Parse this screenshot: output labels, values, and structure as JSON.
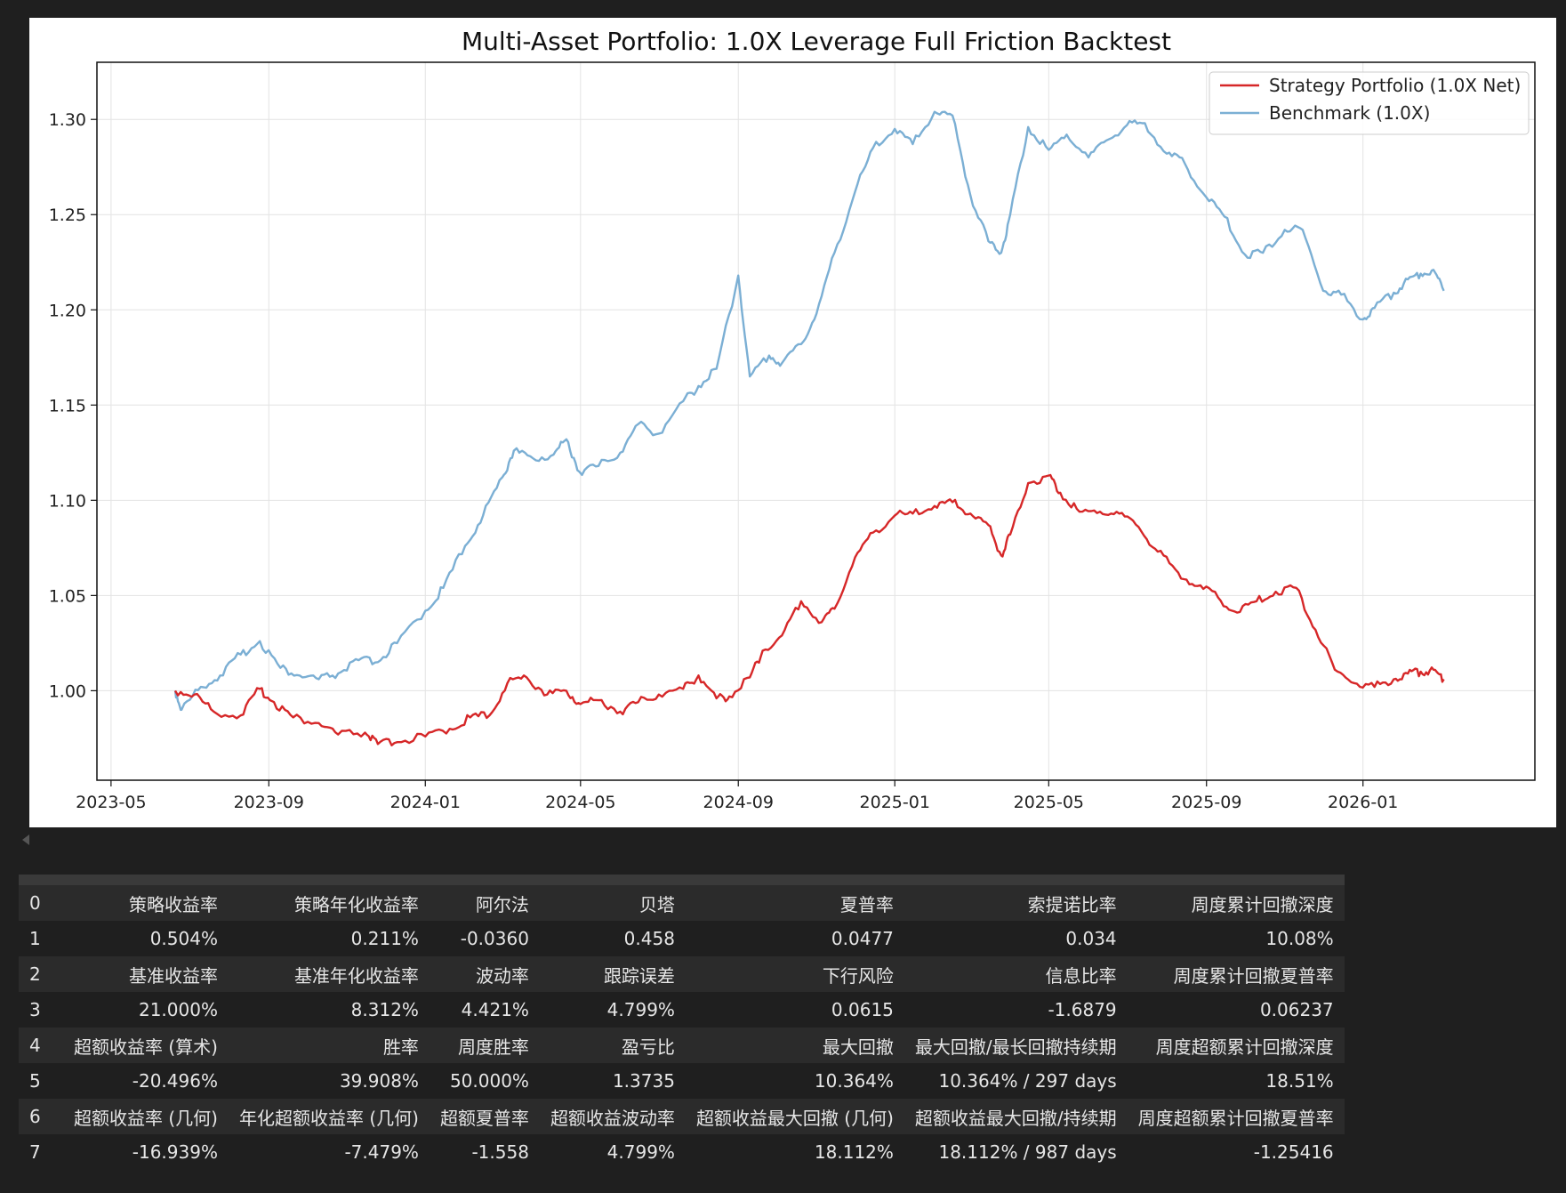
{
  "chart_data": {
    "type": "line",
    "title": "Multi-Asset Portfolio: 1.0X Leverage Full Friction Backtest",
    "xlabel": "",
    "ylabel": "",
    "x_ticks": [
      "2023-05",
      "2023-09",
      "2024-01",
      "2024-05",
      "2024-09",
      "2025-01",
      "2025-05",
      "2025-09",
      "2026-01"
    ],
    "y_ticks": [
      "1.00",
      "1.05",
      "1.10",
      "1.15",
      "1.20",
      "1.25",
      "1.30"
    ],
    "xlim": [
      "2023-04-20",
      "2026-05-15"
    ],
    "ylim": [
      0.953,
      1.33
    ],
    "grid": true,
    "legend_position": "top-right",
    "series": [
      {
        "name": "Strategy Portfolio (1.0X Net)",
        "color": "#d62728",
        "x": [
          "2023-06-20",
          "2023-07-05",
          "2023-07-20",
          "2023-08-10",
          "2023-08-25",
          "2023-09-05",
          "2023-09-20",
          "2023-10-10",
          "2023-10-25",
          "2023-11-15",
          "2023-11-25",
          "2023-12-10",
          "2024-01-01",
          "2024-01-20",
          "2024-02-05",
          "2024-02-20",
          "2024-03-05",
          "2024-03-20",
          "2024-04-05",
          "2024-04-20",
          "2024-05-01",
          "2024-05-15",
          "2024-06-01",
          "2024-06-15",
          "2024-07-01",
          "2024-07-20",
          "2024-08-01",
          "2024-08-15",
          "2024-08-25",
          "2024-09-10",
          "2024-09-20",
          "2024-10-05",
          "2024-10-20",
          "2024-11-05",
          "2024-11-15",
          "2024-12-01",
          "2024-12-15",
          "2025-01-01",
          "2025-01-15",
          "2025-02-01",
          "2025-02-15",
          "2025-03-01",
          "2025-03-15",
          "2025-03-25",
          "2025-04-01",
          "2025-04-15",
          "2025-05-01",
          "2025-05-10",
          "2025-05-25",
          "2025-06-10",
          "2025-06-25",
          "2025-07-10",
          "2025-07-25",
          "2025-08-10",
          "2025-08-25",
          "2025-09-10",
          "2025-09-25",
          "2025-10-10",
          "2025-10-25",
          "2025-11-10",
          "2025-11-25",
          "2025-12-10",
          "2025-12-25",
          "2026-01-10",
          "2026-01-25",
          "2026-02-05",
          "2026-02-15",
          "2026-02-25",
          "2026-03-05"
        ],
        "y": [
          1.0,
          0.998,
          0.989,
          0.987,
          1.001,
          0.994,
          0.986,
          0.983,
          0.977,
          0.978,
          0.972,
          0.973,
          0.976,
          0.98,
          0.986,
          0.987,
          1.004,
          1.007,
          0.998,
          1.0,
          0.993,
          0.995,
          0.989,
          0.994,
          0.998,
          1.001,
          1.008,
          0.996,
          0.997,
          1.007,
          1.021,
          1.029,
          1.047,
          1.036,
          1.043,
          1.07,
          1.083,
          1.092,
          1.093,
          1.097,
          1.099,
          1.093,
          1.087,
          1.071,
          1.082,
          1.109,
          1.113,
          1.104,
          1.094,
          1.094,
          1.093,
          1.086,
          1.073,
          1.062,
          1.055,
          1.049,
          1.041,
          1.047,
          1.052,
          1.054,
          1.032,
          1.011,
          1.004,
          1.002,
          1.006,
          1.009,
          1.01,
          1.011,
          1.006
        ]
      },
      {
        "name": "Benchmark (1.0X)",
        "color": "#7bafd4",
        "x": [
          "2023-06-20",
          "2023-06-25",
          "2023-07-10",
          "2023-07-25",
          "2023-08-10",
          "2023-08-25",
          "2023-09-10",
          "2023-09-25",
          "2023-10-10",
          "2023-10-25",
          "2023-11-10",
          "2023-11-25",
          "2023-12-10",
          "2024-01-01",
          "2024-01-15",
          "2024-02-01",
          "2024-02-15",
          "2024-03-01",
          "2024-03-10",
          "2024-03-25",
          "2024-04-10",
          "2024-04-20",
          "2024-04-30",
          "2024-05-15",
          "2024-06-01",
          "2024-06-15",
          "2024-07-01",
          "2024-07-20",
          "2024-08-01",
          "2024-08-15",
          "2024-09-01",
          "2024-09-10",
          "2024-09-25",
          "2024-10-05",
          "2024-10-20",
          "2024-11-01",
          "2024-11-15",
          "2024-12-01",
          "2024-12-15",
          "2025-01-01",
          "2025-01-15",
          "2025-02-01",
          "2025-02-15",
          "2025-03-01",
          "2025-03-15",
          "2025-03-25",
          "2025-04-01",
          "2025-04-15",
          "2025-05-01",
          "2025-05-15",
          "2025-06-01",
          "2025-06-15",
          "2025-07-01",
          "2025-07-15",
          "2025-08-01",
          "2025-08-15",
          "2025-09-01",
          "2025-09-15",
          "2025-10-01",
          "2025-10-15",
          "2025-11-01",
          "2025-11-15",
          "2025-12-01",
          "2025-12-15",
          "2026-01-01",
          "2026-01-10",
          "2026-01-25",
          "2026-02-05",
          "2026-02-15",
          "2026-02-25",
          "2026-03-05"
        ],
        "y": [
          1.0,
          0.99,
          1.002,
          1.008,
          1.019,
          1.026,
          1.012,
          1.008,
          1.006,
          1.009,
          1.016,
          1.015,
          1.025,
          1.042,
          1.054,
          1.076,
          1.092,
          1.112,
          1.126,
          1.122,
          1.124,
          1.132,
          1.115,
          1.118,
          1.125,
          1.14,
          1.135,
          1.152,
          1.16,
          1.169,
          1.218,
          1.165,
          1.176,
          1.172,
          1.182,
          1.198,
          1.23,
          1.262,
          1.285,
          1.295,
          1.287,
          1.304,
          1.302,
          1.26,
          1.236,
          1.23,
          1.25,
          1.296,
          1.284,
          1.292,
          1.28,
          1.289,
          1.297,
          1.298,
          1.282,
          1.277,
          1.259,
          1.249,
          1.229,
          1.23,
          1.242,
          1.242,
          1.21,
          1.208,
          1.195,
          1.201,
          1.209,
          1.216,
          1.219,
          1.221,
          1.21
        ]
      }
    ]
  },
  "table": {
    "rows": [
      {
        "index": "0",
        "cells": [
          "策略收益率",
          "策略年化收益率",
          "阿尔法",
          "贝塔",
          "夏普率",
          "索提诺比率",
          "周度累计回撤深度"
        ]
      },
      {
        "index": "1",
        "cells": [
          "0.504%",
          "0.211%",
          "-0.0360",
          "0.458",
          "0.0477",
          "0.034",
          "10.08%"
        ]
      },
      {
        "index": "2",
        "cells": [
          "基准收益率",
          "基准年化收益率",
          "波动率",
          "跟踪误差",
          "下行风险",
          "信息比率",
          "周度累计回撤夏普率"
        ]
      },
      {
        "index": "3",
        "cells": [
          "21.000%",
          "8.312%",
          "4.421%",
          "4.799%",
          "0.0615",
          "-1.6879",
          "0.06237"
        ]
      },
      {
        "index": "4",
        "cells": [
          "超额收益率 (算术)",
          "胜率",
          "周度胜率",
          "盈亏比",
          "最大回撤",
          "最大回撤/最长回撤持续期",
          "周度超额累计回撤深度"
        ]
      },
      {
        "index": "5",
        "cells": [
          "-20.496%",
          "39.908%",
          "50.000%",
          "1.3735",
          "10.364%",
          "10.364% / 297 days",
          "18.51%"
        ]
      },
      {
        "index": "6",
        "cells": [
          "超额收益率 (几何)",
          "年化超额收益率 (几何)",
          "超额夏普率",
          "超额收益波动率",
          "超额收益最大回撤 (几何)",
          "超额收益最大回撤/持续期",
          "周度超额累计回撤夏普率"
        ]
      },
      {
        "index": "7",
        "cells": [
          "-16.939%",
          "-7.479%",
          "-1.558",
          "4.799%",
          "18.112%",
          "18.112% / 987 days",
          "-1.25416"
        ]
      }
    ]
  }
}
